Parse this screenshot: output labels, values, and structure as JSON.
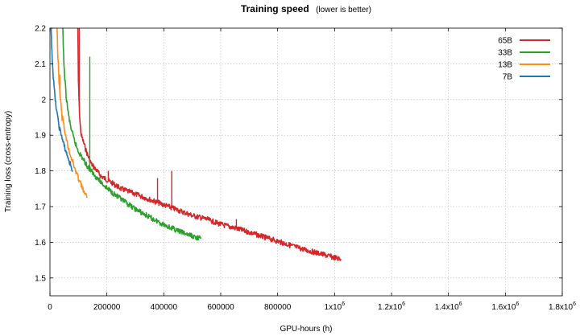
{
  "chart_data": {
    "type": "line",
    "title": "Training speed",
    "subtitle": "(lower is better)",
    "xlabel": "GPU-hours (h)",
    "ylabel": "Training loss (cross-entropy)",
    "xlim": [
      0,
      1800000
    ],
    "ylim": [
      1.45,
      2.2
    ],
    "x_ticks": [
      {
        "value": 0,
        "label": "0"
      },
      {
        "value": 200000,
        "label": "200000"
      },
      {
        "value": 400000,
        "label": "400000"
      },
      {
        "value": 600000,
        "label": "600000"
      },
      {
        "value": 800000,
        "label": "800000"
      },
      {
        "value": 1000000,
        "label": "1x10",
        "exp": "6"
      },
      {
        "value": 1200000,
        "label": "1.2x10",
        "exp": "6"
      },
      {
        "value": 1400000,
        "label": "1.4x10",
        "exp": "6"
      },
      {
        "value": 1600000,
        "label": "1.6x10",
        "exp": "6"
      },
      {
        "value": 1800000,
        "label": "1.8x10",
        "exp": "6"
      }
    ],
    "y_ticks": [
      {
        "value": 1.5,
        "label": "1.5"
      },
      {
        "value": 1.6,
        "label": "1.6"
      },
      {
        "value": 1.7,
        "label": "1.7"
      },
      {
        "value": 1.8,
        "label": "1.8"
      },
      {
        "value": 1.9,
        "label": "1.9"
      },
      {
        "value": 2.0,
        "label": "2"
      },
      {
        "value": 2.1,
        "label": "2.1"
      },
      {
        "value": 2.2,
        "label": "2.2"
      }
    ],
    "grid": true,
    "legend_position": "top-right",
    "series": [
      {
        "name": "65B",
        "color": "#d62728",
        "x": [
          98000,
          100000,
          103000,
          106000,
          110000,
          120000,
          130000,
          145000,
          160000,
          180000,
          200000,
          250000,
          300000,
          350000,
          400000,
          450000,
          500000,
          550000,
          600000,
          650000,
          700000,
          750000,
          800000,
          850000,
          900000,
          950000,
          1000000,
          1022000
        ],
        "y": [
          2.2,
          2.05,
          1.98,
          1.93,
          1.9,
          1.875,
          1.85,
          1.82,
          1.805,
          1.785,
          1.775,
          1.75,
          1.735,
          1.72,
          1.705,
          1.69,
          1.675,
          1.665,
          1.65,
          1.64,
          1.628,
          1.615,
          1.603,
          1.59,
          1.578,
          1.568,
          1.557,
          1.553
        ],
        "spikes": [
          {
            "x": 103000,
            "y": 2.2
          },
          {
            "x": 205000,
            "y": 1.8
          },
          {
            "x": 378000,
            "y": 1.78
          },
          {
            "x": 428000,
            "y": 1.8
          },
          {
            "x": 655000,
            "y": 1.665
          }
        ]
      },
      {
        "name": "33B",
        "color": "#2ca02c",
        "x": [
          45000,
          48000,
          52000,
          57000,
          63000,
          70000,
          80000,
          90000,
          100000,
          115000,
          130000,
          145000,
          160000,
          180000,
          200000,
          250000,
          300000,
          350000,
          400000,
          450000,
          500000,
          530000
        ],
        "y": [
          2.2,
          2.12,
          2.06,
          2.01,
          1.97,
          1.935,
          1.9,
          1.875,
          1.855,
          1.835,
          1.815,
          1.8,
          1.785,
          1.768,
          1.752,
          1.72,
          1.693,
          1.67,
          1.65,
          1.632,
          1.617,
          1.61
        ],
        "spikes": [
          {
            "x": 140000,
            "y": 2.12
          }
        ]
      },
      {
        "name": "13B",
        "color": "#ff8c1a",
        "x": [
          25000,
          28000,
          32000,
          37000,
          43000,
          50000,
          60000,
          70000,
          80000,
          90000,
          100000,
          110000,
          120000,
          130000
        ],
        "y": [
          2.2,
          2.12,
          2.05,
          2.0,
          1.955,
          1.92,
          1.88,
          1.85,
          1.825,
          1.8,
          1.78,
          1.76,
          1.74,
          1.725
        ],
        "spikes": [
          {
            "x": 35000,
            "y": 2.07
          },
          {
            "x": 42000,
            "y": 1.94
          }
        ]
      },
      {
        "name": "7B",
        "color": "#1f77b4",
        "x": [
          4000,
          6000,
          9000,
          12000,
          16000,
          20000,
          26000,
          32000,
          40000,
          50000,
          60000,
          70000,
          80000
        ],
        "y": [
          2.2,
          2.15,
          2.1,
          2.06,
          2.02,
          1.99,
          1.955,
          1.925,
          1.9,
          1.87,
          1.845,
          1.822,
          1.8
        ],
        "spikes": []
      }
    ]
  }
}
